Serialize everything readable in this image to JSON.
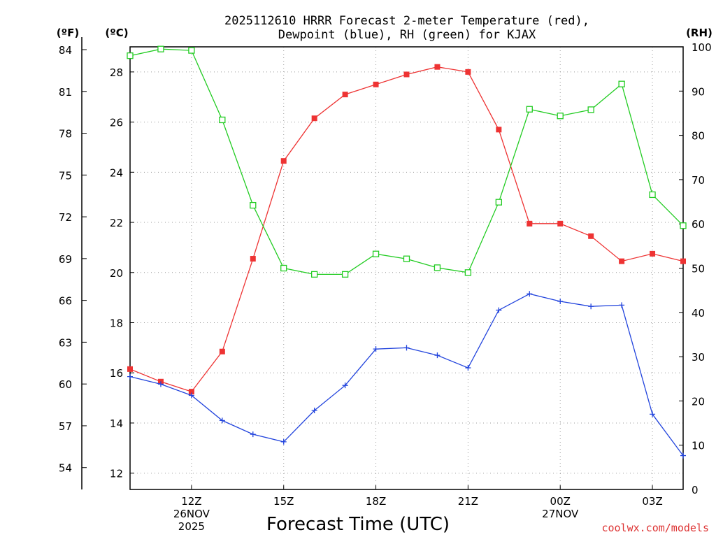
{
  "chart_data": {
    "type": "line",
    "title_lines": [
      "2025112610 HRRR Forecast 2-meter Temperature (red),",
      "Dewpoint (blue), RH (green) for KJAX"
    ],
    "xlabel": "Forecast Time (UTC)",
    "credit": "coolwx.com/models",
    "units": {
      "fahrenheit": "(ºF)",
      "celsius": "(ºC)",
      "rh": "(RH)"
    },
    "hours": [
      10,
      11,
      12,
      13,
      14,
      15,
      16,
      17,
      18,
      19,
      20,
      21,
      22,
      23,
      24,
      25,
      26,
      27,
      28
    ],
    "xlim": [
      10,
      28
    ],
    "x_ticks": [
      {
        "hour": 12,
        "lines": [
          "12Z",
          "26NOV",
          "2025"
        ]
      },
      {
        "hour": 15,
        "lines": [
          "15Z"
        ]
      },
      {
        "hour": 18,
        "lines": [
          "18Z"
        ]
      },
      {
        "hour": 21,
        "lines": [
          "21Z"
        ]
      },
      {
        "hour": 24,
        "lines": [
          "00Z",
          "27NOV"
        ]
      },
      {
        "hour": 27,
        "lines": [
          "03Z"
        ]
      }
    ],
    "celsius_axis": {
      "ylim": [
        11.35,
        29.0
      ],
      "ticks": [
        "12",
        "14",
        "16",
        "18",
        "20",
        "22",
        "24",
        "26",
        "28"
      ]
    },
    "fahrenheit_ticks": [
      "54",
      "57",
      "60",
      "63",
      "66",
      "69",
      "72",
      "75",
      "78",
      "81",
      "84"
    ],
    "rh_axis": {
      "ylim": [
        0,
        100
      ],
      "ticks": [
        "0",
        "10",
        "20",
        "30",
        "40",
        "50",
        "60",
        "70",
        "80",
        "90",
        "100"
      ]
    },
    "series": [
      {
        "name": "2-meter Temperature",
        "axis": "celsius",
        "color": "#ee3333",
        "marker": "filled-square",
        "values": [
          16.15,
          15.65,
          15.25,
          16.85,
          20.55,
          24.45,
          26.15,
          27.1,
          27.5,
          27.9,
          28.2,
          28.0,
          25.7,
          21.95,
          21.95,
          21.45,
          20.45,
          20.75,
          20.45
        ]
      },
      {
        "name": "Dewpoint",
        "axis": "celsius",
        "color": "#2244dd",
        "marker": "plus",
        "values": [
          15.85,
          15.55,
          15.1,
          14.1,
          13.55,
          13.25,
          14.5,
          15.5,
          16.95,
          17.0,
          16.7,
          16.2,
          18.5,
          19.15,
          18.85,
          18.65,
          18.7,
          14.35,
          12.7
        ]
      },
      {
        "name": "RH",
        "axis": "rh",
        "color": "#22cc22",
        "marker": "open-square",
        "values": [
          98,
          99.5,
          99.2,
          83.5,
          64.2,
          50,
          48.6,
          48.6,
          53.2,
          52.1,
          50.1,
          49,
          64.9,
          85.9,
          84.4,
          85.8,
          91.6,
          66.6,
          59.6
        ]
      }
    ]
  }
}
